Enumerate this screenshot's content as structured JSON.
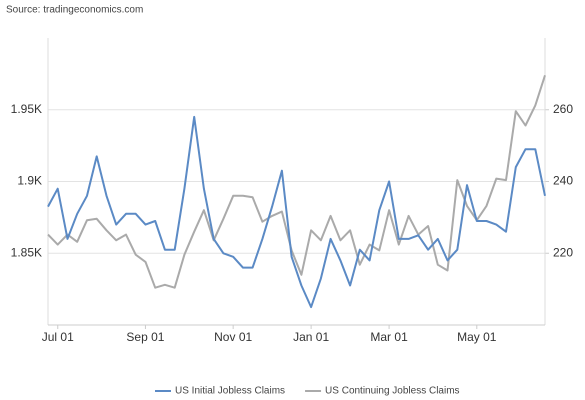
{
  "chart_data": {
    "type": "line",
    "source": "Source: tradingeconomics.com",
    "categories": [
      null,
      "Jul 01",
      null,
      null,
      null,
      null,
      null,
      null,
      null,
      null,
      "Sep 01",
      null,
      null,
      null,
      null,
      null,
      null,
      null,
      null,
      "Nov 01",
      null,
      null,
      null,
      null,
      null,
      null,
      null,
      "Jan 01",
      null,
      null,
      null,
      null,
      null,
      null,
      null,
      "Mar 01",
      null,
      null,
      null,
      null,
      null,
      null,
      null,
      null,
      "May 01",
      null,
      null,
      null,
      null,
      null,
      null,
      null
    ],
    "series": [
      {
        "name": "US Initial Jobless Claims",
        "color": "#5b8ac5",
        "axis": "y2",
        "values": [
          233,
          238,
          224,
          231,
          236,
          247,
          236,
          228,
          231,
          231,
          228,
          229,
          221,
          221,
          238,
          258,
          238,
          224,
          220,
          219,
          216,
          216,
          224,
          233,
          243,
          219,
          211,
          205,
          213,
          224,
          218,
          211,
          221,
          218,
          232,
          240,
          224,
          224,
          225,
          221,
          224,
          218,
          221,
          239,
          229,
          229,
          228,
          226,
          244,
          249,
          249,
          236
        ]
      },
      {
        "name": "US Continuing Jobless Claims",
        "color": "#aaaaaa",
        "axis": "y",
        "values": [
          1863,
          1856,
          1863,
          1858,
          1873,
          1874,
          1866,
          1859,
          1863,
          1849,
          1844,
          1826,
          1828,
          1826,
          1849,
          1865,
          1880,
          1859,
          1874,
          1890,
          1890,
          1889,
          1872,
          1876,
          1879,
          1852,
          1835,
          1866,
          1859,
          1876,
          1859,
          1866,
          1842,
          1856,
          1852,
          1880,
          1856,
          1876,
          1863,
          1869,
          1842,
          1838,
          1901,
          1883,
          1873,
          1883,
          1902,
          1901,
          1949,
          1939,
          1953,
          1974
        ]
      }
    ],
    "ylim": [
      1800,
      2000
    ],
    "yticks": [
      {
        "value": 1850,
        "label": "1.85K"
      },
      {
        "value": 1900,
        "label": "1.9K"
      },
      {
        "value": 1950,
        "label": "1.95K"
      }
    ],
    "y2lim": [
      200,
      280
    ],
    "y2ticks": [
      220,
      240,
      260
    ],
    "grid": true
  }
}
